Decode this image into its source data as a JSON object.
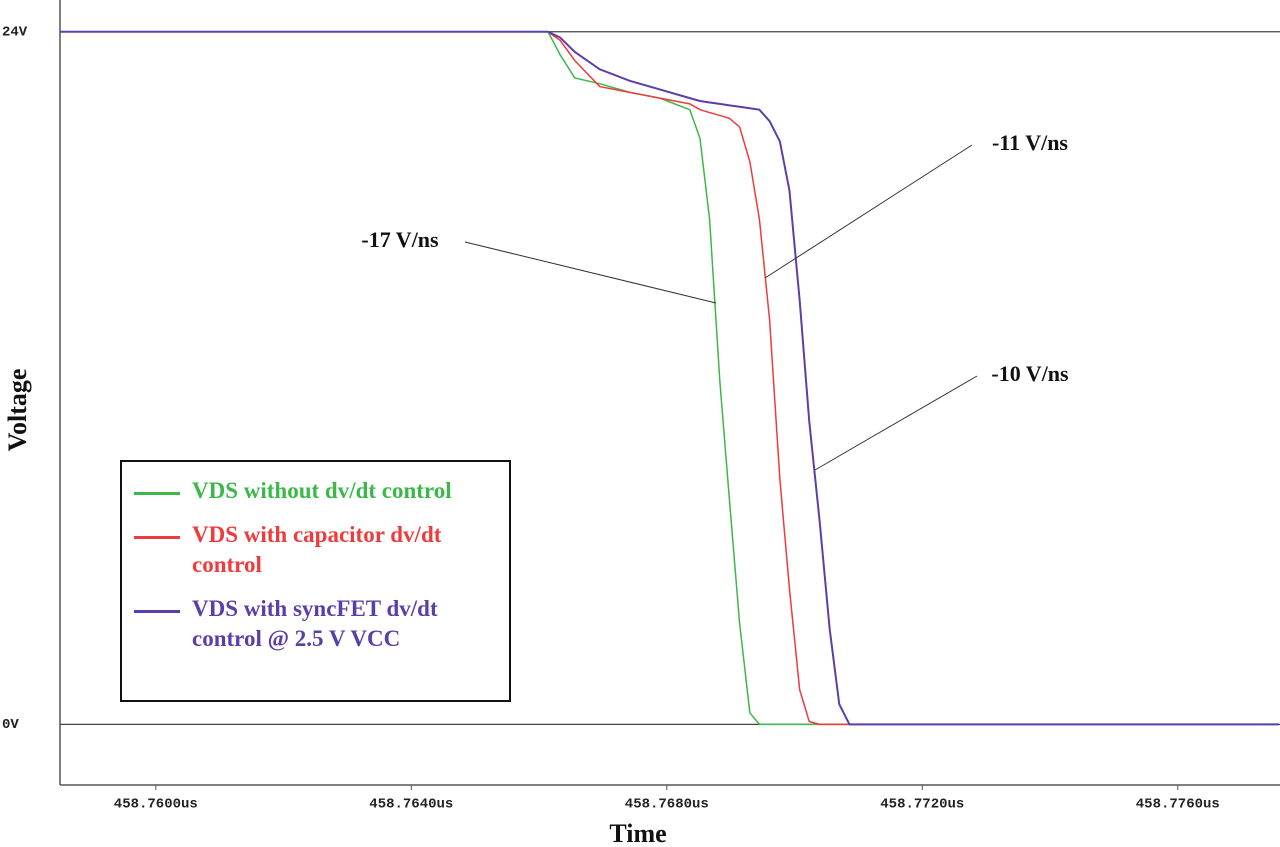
{
  "chart_data": {
    "type": "line",
    "xlabel": "Time",
    "ylabel": "Voltage",
    "x": [
      458.7585,
      458.76614,
      458.76633,
      458.76656,
      458.76695,
      458.76742,
      458.76789,
      458.76836,
      458.76852,
      458.76867,
      458.76883,
      458.76898,
      458.76914,
      458.7693,
      458.76945,
      458.76961,
      458.76977,
      458.76992,
      458.77008,
      458.77023,
      458.77039,
      458.77055,
      458.7707,
      458.77086,
      458.77758
    ],
    "series": [
      {
        "name": "VDS without dv/dt control",
        "color": "#3cb84a",
        "values": [
          24,
          24,
          23.2,
          22.4,
          22.2,
          21.9,
          21.7,
          21.3,
          20.3,
          17.5,
          11.9,
          7.8,
          3.5,
          0.4,
          0,
          0,
          0,
          0,
          0,
          0,
          0,
          0,
          0,
          0,
          0
        ]
      },
      {
        "name": "VDS with capacitor dv/dt control",
        "color": "#ee3b3b",
        "values": [
          24,
          24,
          23.7,
          23.0,
          22.1,
          21.9,
          21.7,
          21.5,
          21.3,
          21.2,
          21.1,
          21.0,
          20.7,
          19.5,
          17.5,
          14.0,
          8.5,
          4.7,
          1.2,
          0.1,
          0,
          0,
          0,
          0,
          0
        ]
      },
      {
        "name": "VDS with syncFET dv/dt control @ 2.5 V VCC",
        "color": "#5b3fa8",
        "values": [
          24,
          24,
          23.8,
          23.3,
          22.7,
          22.3,
          22.0,
          21.7,
          21.6,
          21.55,
          21.5,
          21.45,
          21.4,
          21.35,
          21.3,
          20.9,
          20.2,
          18.5,
          14.7,
          10.5,
          7.1,
          3.3,
          0.7,
          0,
          0
        ]
      }
    ],
    "xlim": [
      458.7585,
      458.7776
    ],
    "xticks": [
      {
        "value": 458.76,
        "label": "458.7600us"
      },
      {
        "value": 458.764,
        "label": "458.7640us"
      },
      {
        "value": 458.768,
        "label": "458.7680us"
      },
      {
        "value": 458.772,
        "label": "458.7720us"
      },
      {
        "value": 458.776,
        "label": "458.7760us"
      }
    ],
    "ylim": [
      -2.1,
      25.1
    ],
    "yticks": [
      {
        "value": 0,
        "label": "0V"
      },
      {
        "value": 24,
        "label": "24V"
      }
    ],
    "grid": true,
    "annotations": [
      "-17 V/ns",
      "-11 V/ns",
      "-10 V/ns"
    ]
  }
}
